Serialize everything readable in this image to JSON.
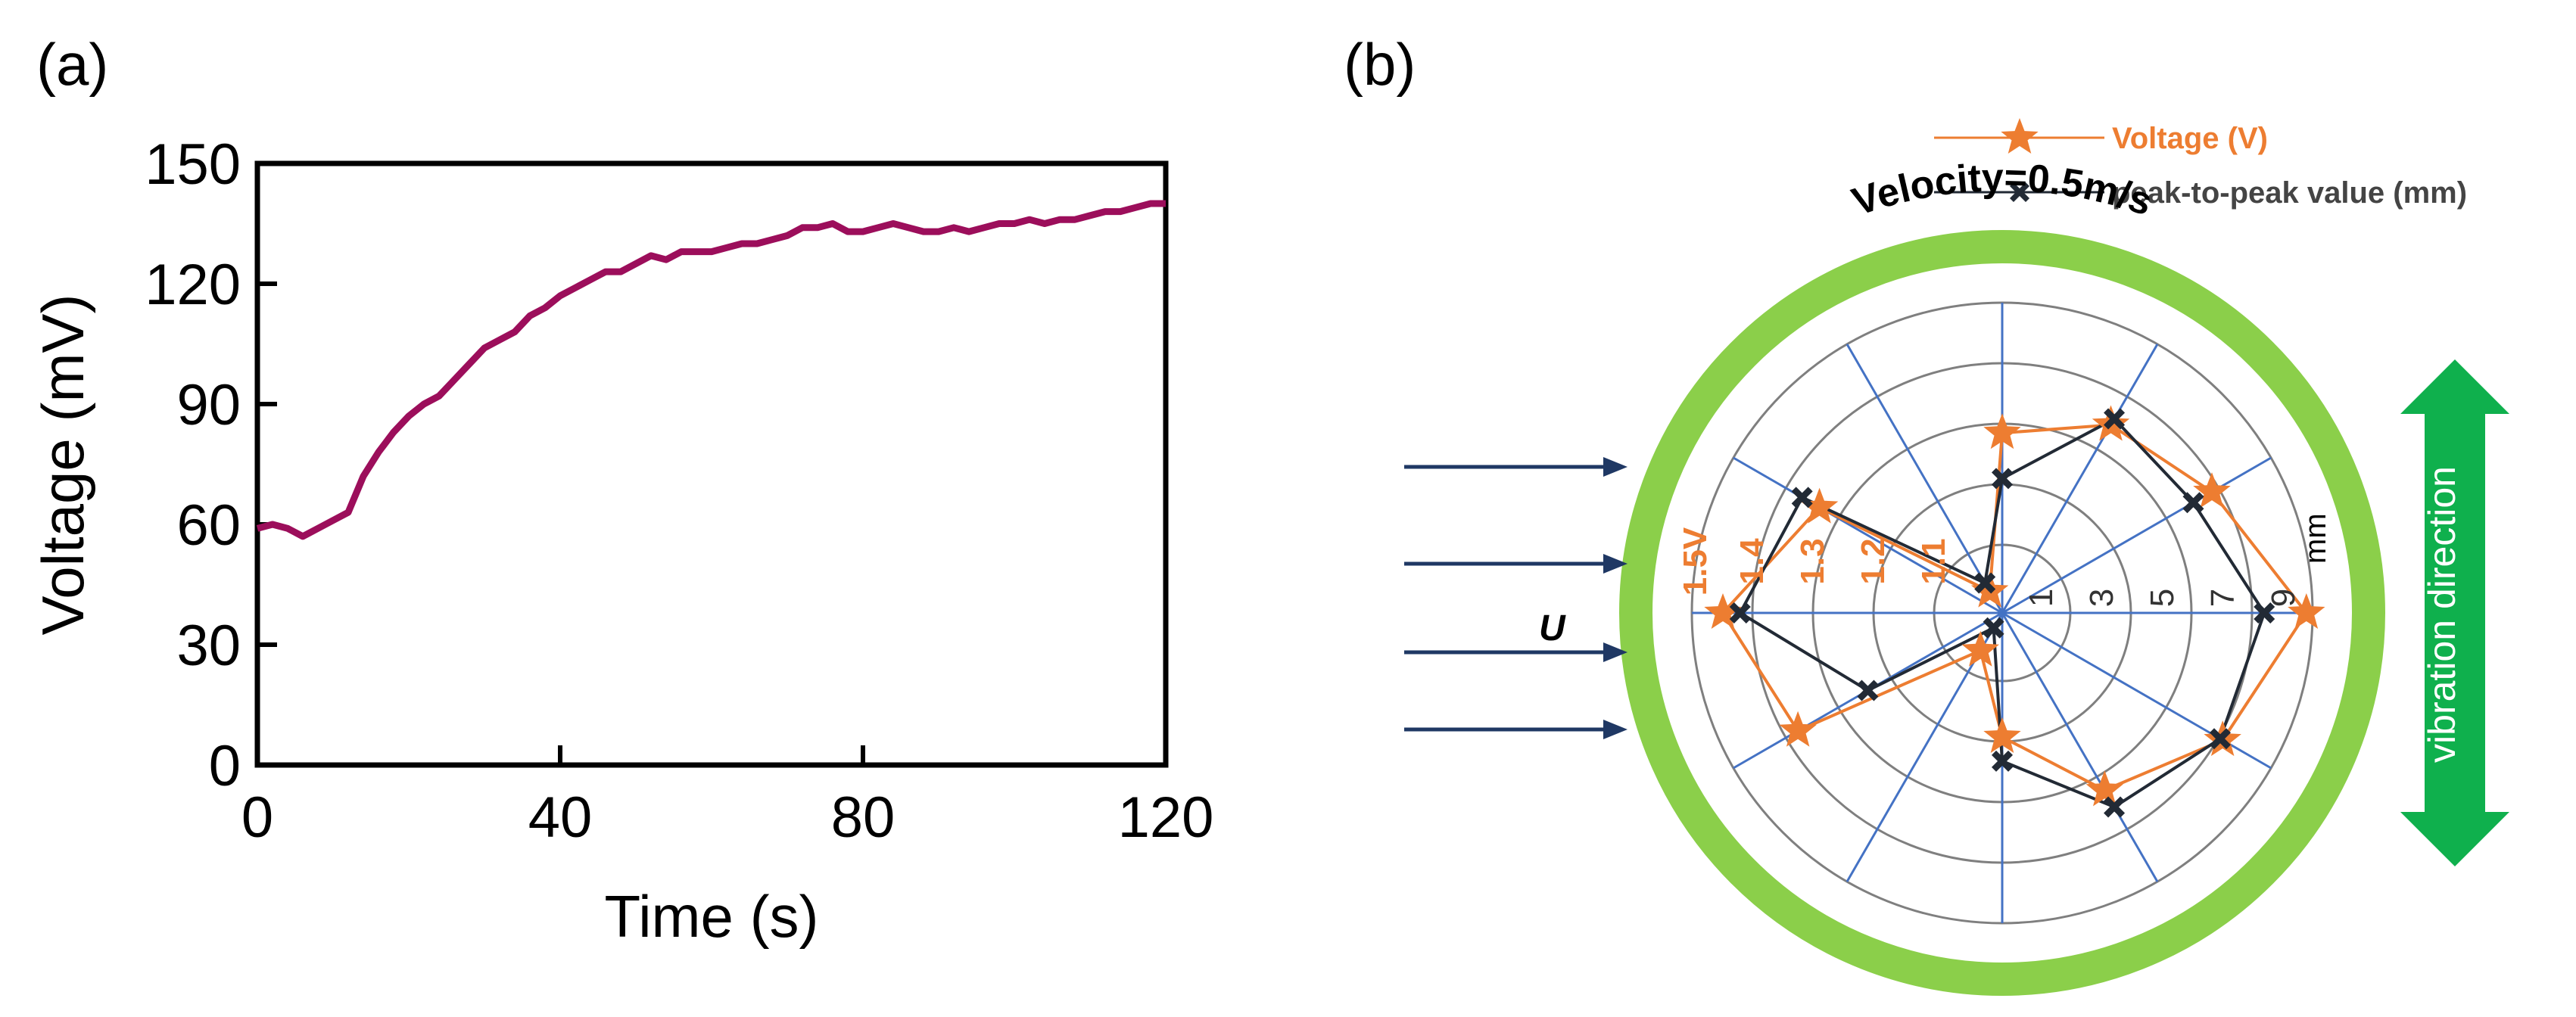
{
  "colors": {
    "line_a": "#9c0e5b",
    "voltage": "#ed7d31",
    "peak": "#222a35",
    "ring": "#8bcf4a",
    "arrow_green": "#0fb04d",
    "flow": "#1f3864",
    "grid": "#4472c4"
  },
  "chart_data": [
    {
      "panel": "(a)",
      "type": "line",
      "xlabel": "Time (s)",
      "ylabel": "Voltage (mV)",
      "xlim": [
        0,
        120
      ],
      "ylim": [
        0,
        150
      ],
      "xticks": [
        0,
        40,
        80,
        120
      ],
      "yticks": [
        0,
        30,
        60,
        90,
        120,
        150
      ],
      "series": [
        {
          "name": "Voltage",
          "x": [
            0,
            2,
            4,
            6,
            8,
            10,
            12,
            14,
            16,
            18,
            20,
            22,
            24,
            26,
            28,
            30,
            32,
            34,
            36,
            38,
            40,
            42,
            44,
            46,
            48,
            50,
            52,
            54,
            56,
            58,
            60,
            62,
            64,
            66,
            68,
            70,
            72,
            74,
            76,
            78,
            80,
            82,
            84,
            86,
            88,
            90,
            92,
            94,
            96,
            98,
            100,
            102,
            104,
            106,
            108,
            110,
            112,
            114,
            116,
            118,
            120
          ],
          "y": [
            59,
            60,
            59,
            57,
            59,
            61,
            63,
            72,
            78,
            83,
            87,
            90,
            92,
            96,
            100,
            104,
            106,
            108,
            112,
            114,
            117,
            119,
            121,
            123,
            123,
            125,
            127,
            126,
            128,
            128,
            128,
            129,
            130,
            130,
            131,
            132,
            134,
            134,
            135,
            133,
            133,
            134,
            135,
            134,
            133,
            133,
            134,
            133,
            134,
            135,
            135,
            136,
            135,
            136,
            136,
            137,
            138,
            138,
            139,
            140,
            140
          ]
        }
      ]
    },
    {
      "panel": "(b)",
      "type": "radar",
      "title": "Velocity=0.5m/s",
      "angles_deg": [
        0,
        30,
        60,
        90,
        120,
        150,
        180,
        210,
        240,
        270,
        300,
        330
      ],
      "series": [
        {
          "name": "Voltage (V)",
          "unit": "V",
          "rlim": [
            1.0,
            1.5
          ],
          "values": [
            1.49,
            1.39,
            1.35,
            1.29,
            1.04,
            1.34,
            1.45,
            1.38,
            1.07,
            1.2,
            1.33,
            1.41
          ]
        },
        {
          "name": "peak-to-peak value (mm)",
          "unit": "mm",
          "rlim": [
            0,
            9
          ],
          "values": [
            7.6,
            6.4,
            6.5,
            3.9,
            1.0,
            6.7,
            7.6,
            4.5,
            0.5,
            4.3,
            6.5,
            7.3
          ]
        }
      ],
      "left_scale_labels": [
        "1.1",
        "1.2",
        "1.3",
        "1.4",
        "1.5V"
      ],
      "right_scale_labels": [
        "1",
        "3",
        "5",
        "7",
        "9"
      ],
      "right_unit": "mm",
      "flow_label": "U",
      "vibration_label": "vibration direction"
    }
  ]
}
